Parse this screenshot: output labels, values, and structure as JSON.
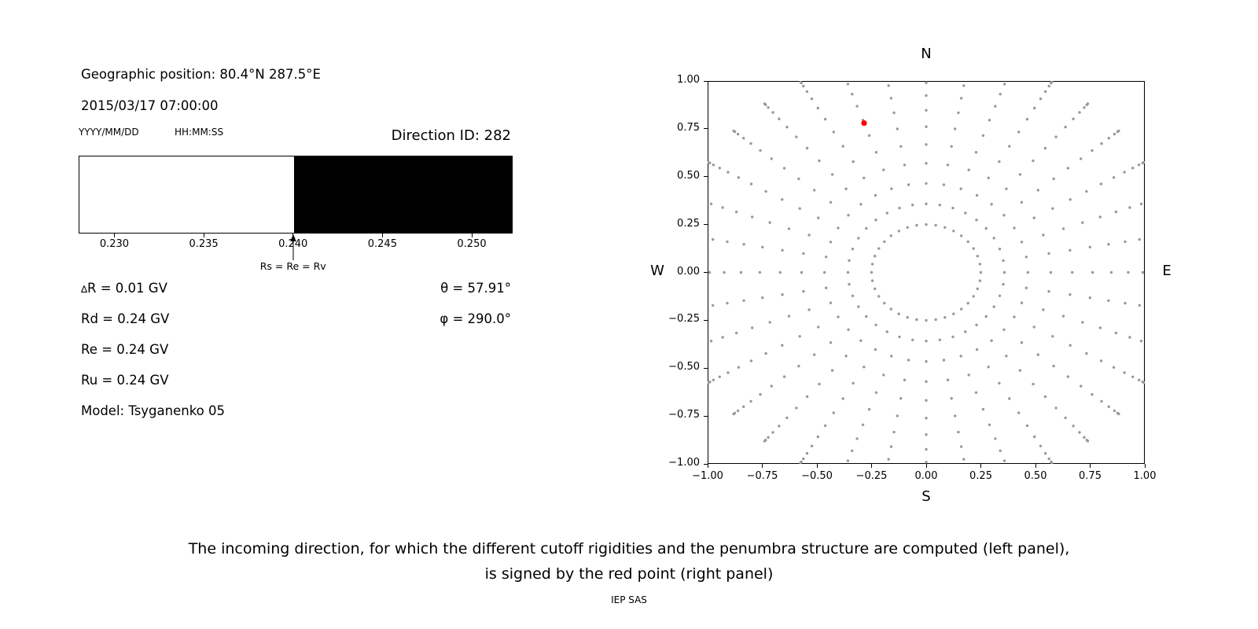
{
  "title": "Cutoff rigidities and penumbra structure figure",
  "left_panel": {
    "geographic_position": "Geographic position: 80.4°N 287.5°E",
    "datetime": "2015/03/17 07:00:00",
    "date_format_label": "YYYY/MM/DD",
    "time_format_label": "HH:MM:SS",
    "direction_id": "Direction ID: 282",
    "delta_r_symbol": "∆",
    "delta_r_text": "R = 0.01 GV",
    "rd": "Rd = 0.24 GV",
    "re": "Re = 0.24 GV",
    "ru": "Ru = 0.24 GV",
    "model": "Model: Tsyganenko 05",
    "theta": "θ = 57.91°",
    "phi": "φ = 290.0°"
  },
  "caption": {
    "line1": "The incoming direction, for which the different cutoff rigidities and the penumbra structure are computed (left panel),",
    "line2": "is signed by the red point (right panel)",
    "credit": "IEP SAS"
  },
  "chart_data": [
    {
      "type": "bar",
      "name": "penumbra-structure",
      "x_range": [
        0.228,
        0.2522
      ],
      "boundary": 0.24,
      "bands": [
        {
          "from": 0.228,
          "to": 0.24,
          "color": "#ffffff"
        },
        {
          "from": 0.24,
          "to": 0.2522,
          "color": "#000000"
        }
      ],
      "xticks": [
        0.23,
        0.235,
        0.24,
        0.245,
        0.25
      ],
      "xtick_labels": [
        "0.230",
        "0.235",
        "0.240",
        "0.245",
        "0.250"
      ],
      "marker": {
        "x": 0.24,
        "label": "Rs = Re = Rv"
      }
    },
    {
      "type": "scatter",
      "name": "incoming-direction-map",
      "xlim": [
        -1,
        1
      ],
      "ylim": [
        -1,
        1
      ],
      "xticks": [
        -1,
        -0.75,
        -0.5,
        -0.25,
        0,
        0.25,
        0.5,
        0.75,
        1
      ],
      "xtick_labels": [
        "−1.00",
        "−0.75",
        "−0.50",
        "−0.25",
        "0.00",
        "0.25",
        "0.50",
        "0.75",
        "1.00"
      ],
      "yticks": [
        1,
        0.75,
        0.5,
        0.25,
        0,
        -0.25,
        -0.5,
        -0.75,
        -1
      ],
      "ytick_labels": [
        "1.00",
        "0.75",
        "0.50",
        "0.25",
        "0.00",
        "−0.25",
        "−0.50",
        "−0.75",
        "−1.00"
      ],
      "compass": {
        "north": "N",
        "south": "S",
        "west": "W",
        "east": "E"
      },
      "spokes": {
        "azimuth_start_deg": 0,
        "azimuth_step_deg": 10,
        "azimuth_count": 36,
        "radii": [
          0.25,
          0.358,
          0.465,
          0.57,
          0.668,
          0.761,
          0.847,
          0.924,
          0.991,
          1.047,
          1.091,
          1.124,
          1.143,
          1.15
        ],
        "clip_abs": 1.0,
        "dot_color": "#999999"
      },
      "red_point": {
        "x": -0.284,
        "y": 0.78,
        "color": "#ff0000"
      }
    }
  ]
}
